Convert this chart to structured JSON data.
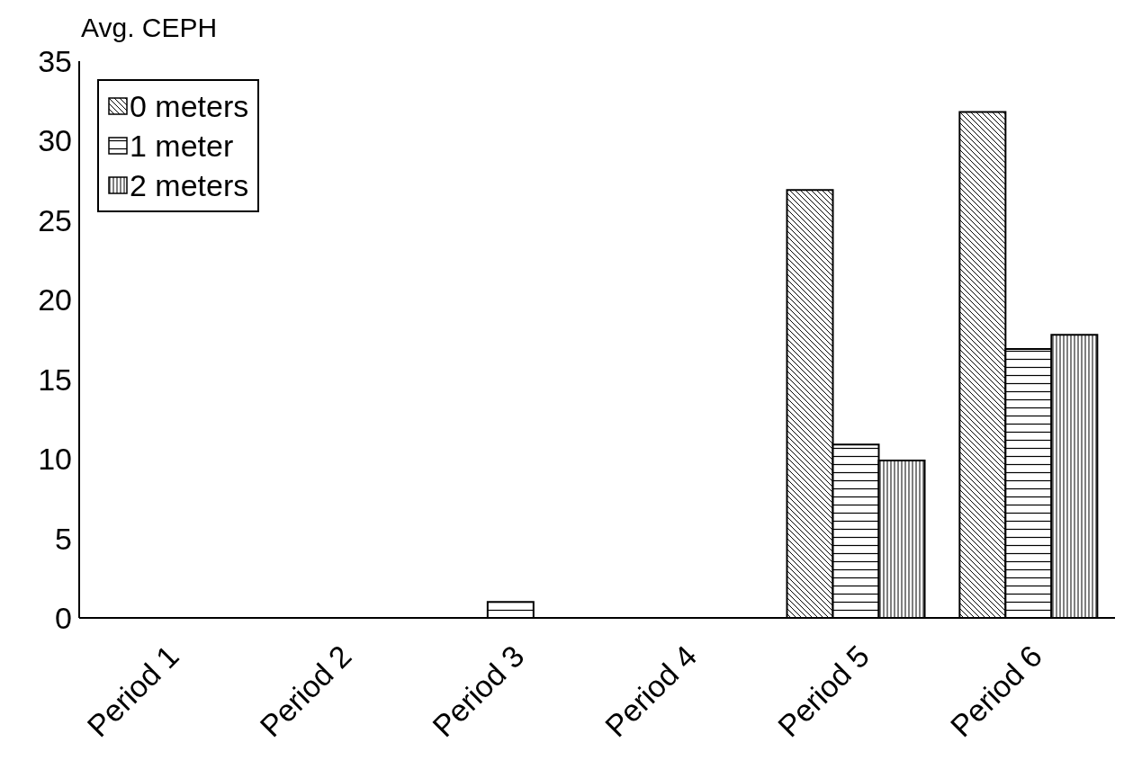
{
  "chart_data": {
    "type": "bar",
    "ylabel": "Avg. CEPH",
    "categories": [
      "Period 1",
      "Period 2",
      "Period 3",
      "Period 4",
      "Period 5",
      "Period 6"
    ],
    "series": [
      {
        "name": "0 meters",
        "color": "#000000",
        "values": [
          0,
          0,
          0,
          0,
          26.9,
          31.8
        ]
      },
      {
        "name": "1 meter",
        "color": "#000000",
        "values": [
          0,
          0,
          1.0,
          0,
          10.9,
          16.9
        ]
      },
      {
        "name": "2 meters",
        "color": "#000000",
        "values": [
          0,
          0,
          0,
          0,
          9.9,
          17.8
        ]
      }
    ],
    "ylim": [
      0,
      35
    ],
    "yticks": [
      0,
      5,
      10,
      15,
      20,
      25,
      30,
      35
    ],
    "grid": false,
    "legend": "top left"
  }
}
